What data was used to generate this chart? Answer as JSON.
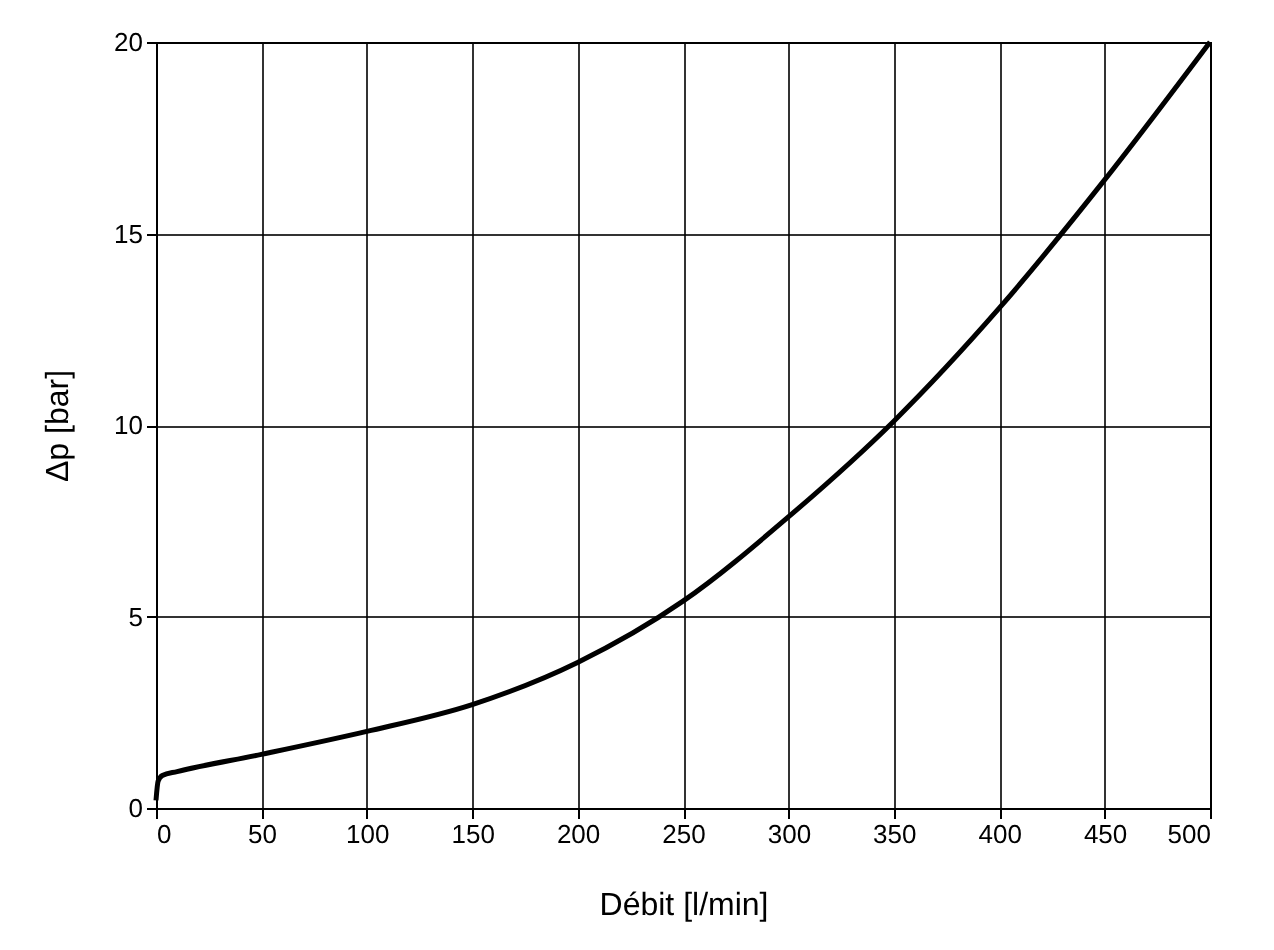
{
  "chart_data": {
    "type": "line",
    "xlabel": "Débit [l/min]",
    "ylabel": "Δp [bar]",
    "x": [
      0,
      1,
      3,
      10,
      50,
      100,
      150,
      200,
      250,
      300,
      350,
      400,
      450,
      500
    ],
    "series": [
      {
        "color": "#000000",
        "values": [
          0.2,
          0.7,
          0.85,
          0.95,
          1.4,
          2.0,
          2.7,
          3.8,
          5.4,
          7.6,
          10.1,
          13.05,
          16.4,
          20
        ]
      }
    ],
    "xlim": [
      0,
      500
    ],
    "xticks": [
      0,
      50,
      100,
      150,
      200,
      250,
      300,
      350,
      400,
      450,
      500
    ],
    "ylim": [
      0,
      20
    ],
    "yticks": [
      0,
      5,
      10,
      15,
      20
    ],
    "grid": true,
    "marker": "none",
    "line_style": "solid"
  }
}
